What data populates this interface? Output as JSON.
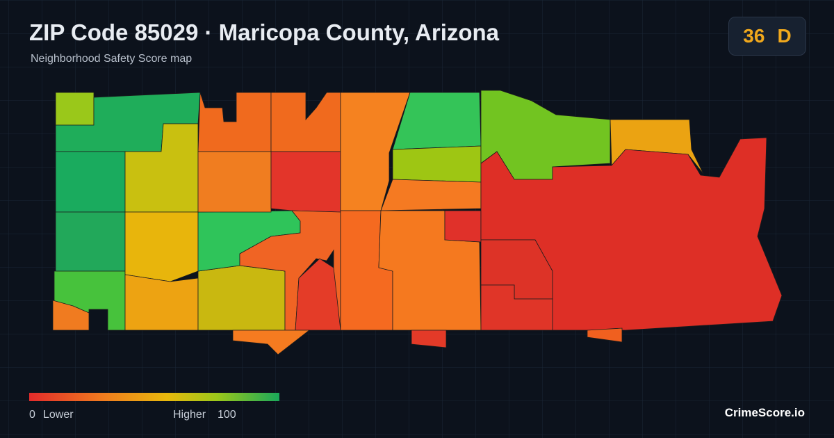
{
  "header": {
    "title": "ZIP Code 85029 · Maricopa County, Arizona",
    "subtitle": "Neighborhood Safety Score map"
  },
  "score": {
    "value": "36",
    "grade": "D"
  },
  "legend": {
    "min": "0",
    "min_label": "Lower",
    "max_label": "Higher",
    "max": "100"
  },
  "brand": "CrimeScore.io"
}
